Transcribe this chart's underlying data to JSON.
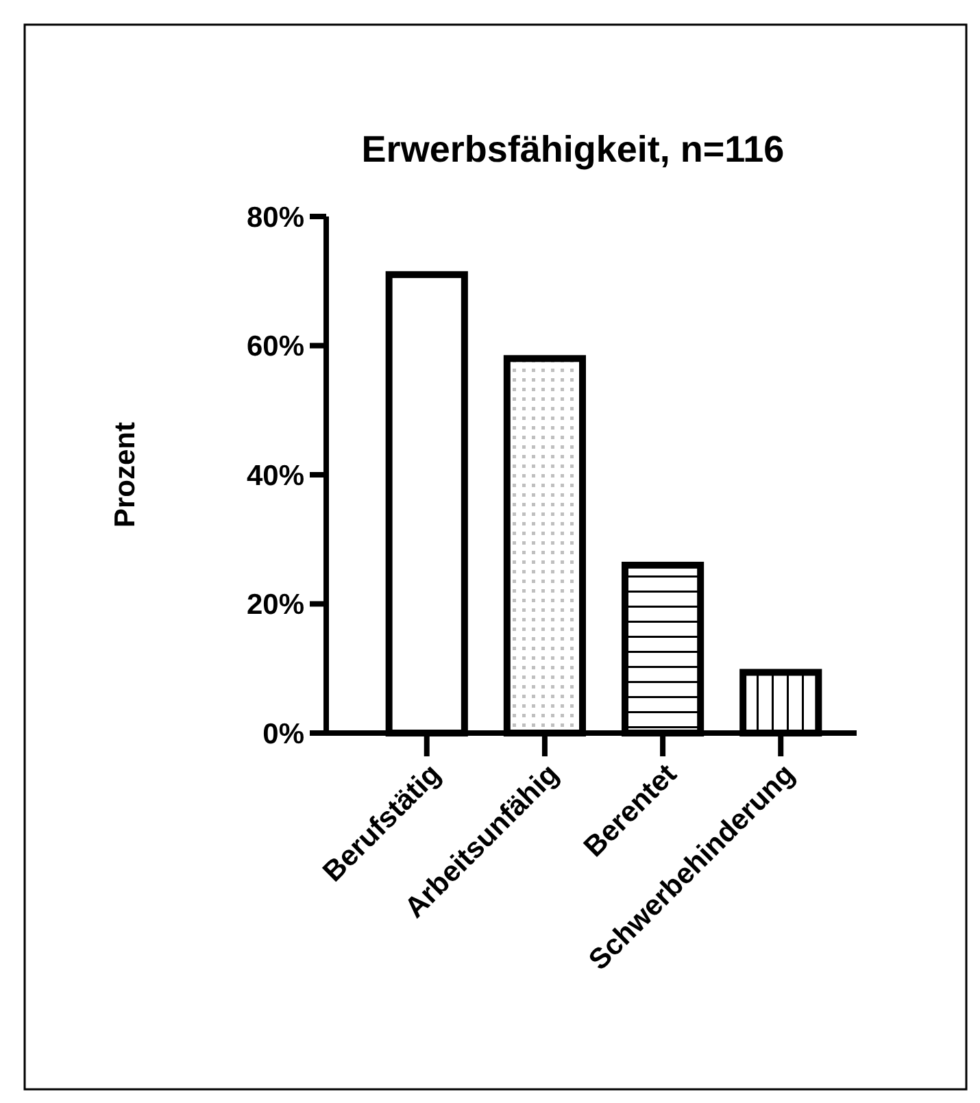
{
  "chart_data": {
    "type": "bar",
    "title": "Erwerbsfähigkeit, n=116",
    "ylabel": "Prozent",
    "categories": [
      "Berufstätig",
      "Arbeitsunfähig",
      "Berentet",
      "Schwerbehinderung"
    ],
    "values": [
      71,
      58,
      26,
      9.4
    ],
    "color": "#000000",
    "ylim": [
      0,
      80
    ],
    "yticks": [
      {
        "value": 0,
        "label": "0%"
      },
      {
        "value": 20,
        "label": "20%"
      },
      {
        "value": 40,
        "label": "40%"
      },
      {
        "value": 60,
        "label": "60%"
      },
      {
        "value": 80,
        "label": "80%"
      }
    ],
    "grid": false
  }
}
